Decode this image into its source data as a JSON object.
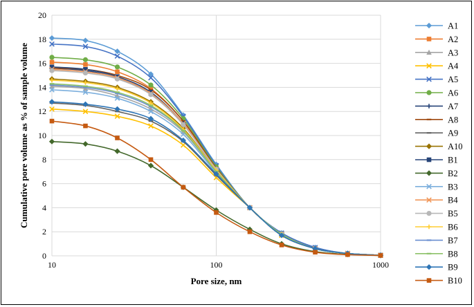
{
  "chart_data": {
    "type": "line",
    "title": "",
    "xlabel": "Pore size, nm",
    "ylabel": "Cumulative pore volume as % of sample volume",
    "xscale": "log",
    "xlim": [
      10,
      1000
    ],
    "ylim": [
      0,
      20
    ],
    "x_ticks": [
      "10",
      "100",
      "1000"
    ],
    "y_ticks": [
      "0",
      "2",
      "4",
      "6",
      "8",
      "10",
      "12",
      "14",
      "16",
      "18",
      "20"
    ],
    "grid": "major",
    "legend_position": "right",
    "x": [
      10,
      16,
      25,
      40,
      63,
      100,
      160,
      250,
      400,
      630,
      1000
    ],
    "series": [
      {
        "name": "A1",
        "color": "#5B9BD5",
        "marker": "diamond",
        "values": [
          18.1,
          17.9,
          17.0,
          15.1,
          11.7,
          7.6,
          4.0,
          1.9,
          0.7,
          0.2,
          0.05
        ]
      },
      {
        "name": "A2",
        "color": "#ED7D31",
        "marker": "square",
        "values": [
          16.1,
          15.9,
          15.3,
          13.9,
          11.2,
          7.3,
          4.0,
          1.8,
          0.6,
          0.2,
          0.05
        ]
      },
      {
        "name": "A3",
        "color": "#A5A5A5",
        "marker": "triangle",
        "values": [
          14.1,
          13.9,
          13.3,
          12.2,
          10.3,
          7.0,
          4.0,
          1.8,
          0.6,
          0.2,
          0.05
        ]
      },
      {
        "name": "A4",
        "color": "#FFC000",
        "marker": "x",
        "values": [
          12.2,
          12.0,
          11.6,
          10.8,
          9.2,
          6.5,
          4.0,
          1.7,
          0.6,
          0.2,
          0.05
        ]
      },
      {
        "name": "A5",
        "color": "#4472C4",
        "marker": "x",
        "values": [
          17.6,
          17.4,
          16.6,
          14.8,
          11.6,
          7.5,
          4.0,
          1.9,
          0.7,
          0.2,
          0.05
        ]
      },
      {
        "name": "A6",
        "color": "#70AD47",
        "marker": "circle",
        "values": [
          16.5,
          16.3,
          15.7,
          14.2,
          11.4,
          7.4,
          4.0,
          1.8,
          0.6,
          0.2,
          0.05
        ]
      },
      {
        "name": "A7",
        "color": "#264478",
        "marker": "plus",
        "values": [
          15.6,
          15.4,
          14.8,
          13.5,
          11.0,
          7.2,
          4.0,
          1.8,
          0.6,
          0.2,
          0.05
        ]
      },
      {
        "name": "A8",
        "color": "#9E480E",
        "marker": "dash",
        "values": [
          15.6,
          15.5,
          15.0,
          13.8,
          11.2,
          7.3,
          4.0,
          1.8,
          0.6,
          0.2,
          0.05
        ]
      },
      {
        "name": "A9",
        "color": "#636363",
        "marker": "dash",
        "values": [
          12.7,
          12.5,
          12.0,
          11.2,
          9.5,
          6.7,
          4.0,
          1.7,
          0.6,
          0.2,
          0.05
        ]
      },
      {
        "name": "A10",
        "color": "#997300",
        "marker": "diamond",
        "values": [
          14.7,
          14.5,
          14.0,
          12.8,
          10.6,
          7.1,
          4.0,
          1.8,
          0.6,
          0.2,
          0.05
        ]
      },
      {
        "name": "B1",
        "color": "#264478",
        "marker": "square",
        "values": [
          15.7,
          15.5,
          14.9,
          13.6,
          11.0,
          7.2,
          4.0,
          1.8,
          0.6,
          0.2,
          0.05
        ]
      },
      {
        "name": "B2",
        "color": "#43682B",
        "marker": "diamond",
        "values": [
          9.5,
          9.3,
          8.7,
          7.5,
          5.7,
          3.8,
          2.2,
          1.0,
          0.35,
          0.12,
          0.03
        ]
      },
      {
        "name": "B3",
        "color": "#7CAFDD",
        "marker": "x",
        "values": [
          13.8,
          13.6,
          13.1,
          12.0,
          10.1,
          6.9,
          4.0,
          1.8,
          0.6,
          0.2,
          0.05
        ]
      },
      {
        "name": "B4",
        "color": "#F1975A",
        "marker": "x",
        "values": [
          15.5,
          15.3,
          14.8,
          13.5,
          11.0,
          7.2,
          4.0,
          1.8,
          0.6,
          0.2,
          0.05
        ]
      },
      {
        "name": "B5",
        "color": "#B7B7B7",
        "marker": "circle",
        "values": [
          15.4,
          15.2,
          14.7,
          13.4,
          10.9,
          7.2,
          4.0,
          1.8,
          0.6,
          0.2,
          0.05
        ]
      },
      {
        "name": "B6",
        "color": "#FFCD33",
        "marker": "plus",
        "values": [
          14.6,
          14.4,
          13.9,
          12.7,
          10.5,
          7.1,
          4.0,
          1.8,
          0.6,
          0.2,
          0.05
        ]
      },
      {
        "name": "B7",
        "color": "#698ED0",
        "marker": "dash",
        "values": [
          14.2,
          14.0,
          13.5,
          12.4,
          10.4,
          7.0,
          4.0,
          1.8,
          0.6,
          0.2,
          0.05
        ]
      },
      {
        "name": "B8",
        "color": "#8CC168",
        "marker": "dash",
        "values": [
          14.3,
          14.1,
          13.6,
          12.5,
          10.4,
          7.0,
          4.0,
          1.8,
          0.6,
          0.2,
          0.05
        ]
      },
      {
        "name": "B9",
        "color": "#2E75B6",
        "marker": "diamond",
        "values": [
          12.8,
          12.6,
          12.2,
          11.4,
          9.6,
          6.8,
          4.0,
          1.7,
          0.6,
          0.2,
          0.05
        ]
      },
      {
        "name": "B10",
        "color": "#C55A11",
        "marker": "square",
        "values": [
          11.2,
          10.8,
          9.8,
          8.0,
          5.7,
          3.6,
          2.0,
          0.9,
          0.3,
          0.1,
          0.03
        ]
      }
    ]
  }
}
